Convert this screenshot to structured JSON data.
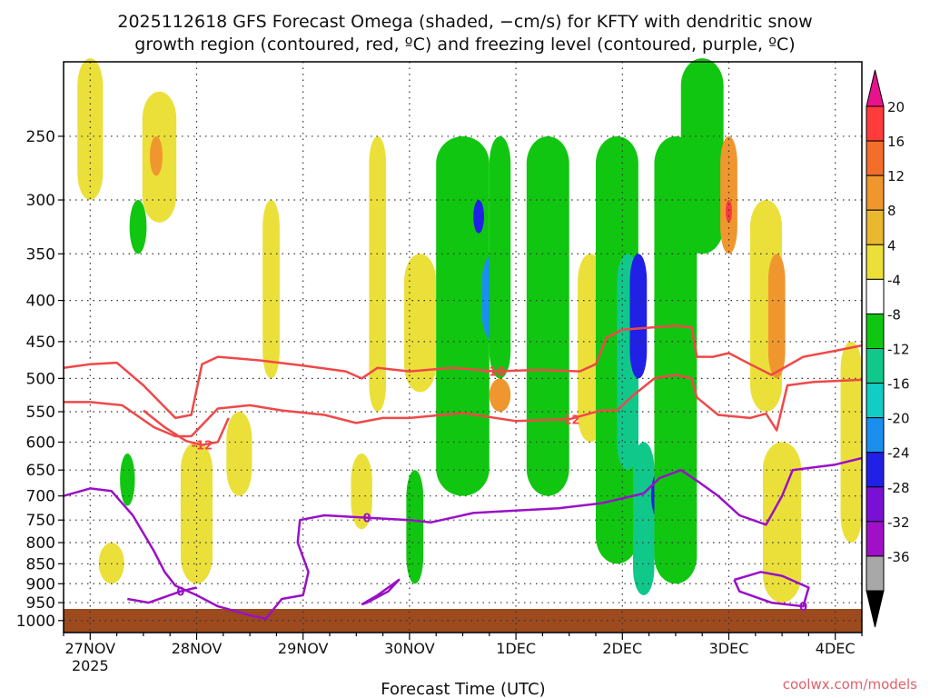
{
  "chart_data": {
    "type": "heatmap",
    "title_line1": "2025112618 GFS Forecast Omega (shaded, −cm/s) for KFTY with dendritic snow",
    "title_line2": "growth region (contoured, red, ºC) and freezing level (contoured, purple, ºC)",
    "xlabel": "Forecast Time (UTC)",
    "ylabel": "",
    "credit": "coolwx.com/models",
    "x_range_days": [
      -0.25,
      7.25
    ],
    "x_ticks": [
      {
        "day": 0,
        "label": "27NOV",
        "sublabel": "2025"
      },
      {
        "day": 1,
        "label": "28NOV"
      },
      {
        "day": 2,
        "label": "29NOV"
      },
      {
        "day": 3,
        "label": "30NOV"
      },
      {
        "day": 4,
        "label": "1DEC"
      },
      {
        "day": 5,
        "label": "2DEC"
      },
      {
        "day": 6,
        "label": "3DEC"
      },
      {
        "day": 7,
        "label": "4DEC"
      }
    ],
    "y_ticks_hpa": [
      250,
      300,
      350,
      400,
      450,
      500,
      550,
      600,
      650,
      700,
      750,
      800,
      850,
      900,
      950,
      1000
    ],
    "colorbar": {
      "labels": [
        "20",
        "16",
        "12",
        "8",
        "4",
        "-4",
        "-8",
        "-12",
        "-16",
        "-20",
        "-24",
        "-28",
        "-32",
        "-36"
      ],
      "colors": [
        "#e8128c",
        "#ff3b3b",
        "#f36e2b",
        "#f0962e",
        "#e9b830",
        "#ebe03a",
        "#ffffff",
        "#11c611",
        "#10c88a",
        "#11cdc6",
        "#1a8ff0",
        "#2020e6",
        "#7a10d6",
        "#a010c8",
        "#a8a8a8",
        "#000000"
      ]
    },
    "dendritic_contours": [
      {
        "label": "-18",
        "points": [
          [
            -0.25,
            485
          ],
          [
            0,
            480
          ],
          [
            0.25,
            478
          ],
          [
            0.5,
            510
          ],
          [
            0.8,
            560
          ],
          [
            0.95,
            555
          ],
          [
            1.05,
            480
          ],
          [
            1.2,
            470
          ],
          [
            1.6,
            475
          ],
          [
            2.0,
            482
          ],
          [
            2.4,
            490
          ],
          [
            2.55,
            500
          ],
          [
            2.7,
            485
          ],
          [
            3.0,
            490
          ],
          [
            3.4,
            485
          ],
          [
            3.8,
            490
          ],
          [
            4.2,
            488
          ],
          [
            4.6,
            490
          ],
          [
            4.75,
            480
          ],
          [
            4.85,
            445
          ],
          [
            5.0,
            435
          ],
          [
            5.5,
            430
          ],
          [
            5.65,
            432
          ],
          [
            5.7,
            470
          ],
          [
            5.85,
            470
          ],
          [
            6.0,
            465
          ],
          [
            6.2,
            480
          ],
          [
            6.4,
            495
          ],
          [
            6.7,
            470
          ],
          [
            7.0,
            462
          ],
          [
            7.25,
            455
          ]
        ]
      },
      {
        "label": "-12",
        "points": [
          [
            -0.25,
            535
          ],
          [
            0,
            535
          ],
          [
            0.3,
            540
          ],
          [
            0.6,
            575
          ],
          [
            0.8,
            590
          ],
          [
            0.95,
            590
          ],
          [
            1.2,
            545
          ],
          [
            1.5,
            540
          ],
          [
            1.8,
            548
          ],
          [
            2.2,
            555
          ],
          [
            2.5,
            568
          ],
          [
            2.75,
            560
          ],
          [
            3.0,
            560
          ],
          [
            3.5,
            552
          ],
          [
            4.0,
            565
          ],
          [
            4.5,
            562
          ],
          [
            4.8,
            548
          ],
          [
            4.95,
            548
          ],
          [
            5.1,
            525
          ],
          [
            5.3,
            500
          ],
          [
            5.5,
            495
          ],
          [
            5.65,
            500
          ],
          [
            5.7,
            528
          ],
          [
            5.9,
            555
          ],
          [
            6.2,
            560
          ],
          [
            6.35,
            553
          ],
          [
            6.45,
            580
          ],
          [
            6.55,
            510
          ],
          [
            6.8,
            505
          ],
          [
            7.25,
            502
          ]
        ]
      },
      {
        "label": "-12",
        "points": [
          [
            0.5,
            548
          ],
          [
            0.7,
            575
          ],
          [
            0.9,
            598
          ],
          [
            1.05,
            605
          ],
          [
            1.2,
            600
          ],
          [
            1.3,
            560
          ]
        ]
      }
    ],
    "freezing_contours": [
      {
        "label": "0",
        "points": [
          [
            -0.25,
            700
          ],
          [
            0,
            685
          ],
          [
            0.2,
            690
          ],
          [
            0.4,
            740
          ],
          [
            0.6,
            820
          ],
          [
            0.7,
            870
          ],
          [
            0.8,
            905
          ],
          [
            1.0,
            930
          ],
          [
            1.2,
            960
          ],
          [
            1.5,
            985
          ],
          [
            1.65,
            995
          ],
          [
            1.8,
            940
          ],
          [
            2.0,
            930
          ],
          [
            2.05,
            870
          ],
          [
            1.95,
            800
          ],
          [
            1.97,
            750
          ],
          [
            2.2,
            740
          ],
          [
            2.6,
            745
          ],
          [
            3.0,
            750
          ],
          [
            3.2,
            755
          ],
          [
            3.6,
            735
          ],
          [
            4.0,
            730
          ],
          [
            4.4,
            725
          ],
          [
            4.8,
            715
          ],
          [
            5.2,
            695
          ],
          [
            5.35,
            665
          ],
          [
            5.55,
            650
          ],
          [
            5.7,
            670
          ],
          [
            5.9,
            700
          ],
          [
            6.1,
            740
          ],
          [
            6.35,
            760
          ],
          [
            6.5,
            700
          ],
          [
            6.6,
            650
          ],
          [
            7.0,
            640
          ],
          [
            7.25,
            628
          ]
        ]
      },
      {
        "label": "0",
        "points": [
          [
            0.35,
            940
          ],
          [
            0.55,
            950
          ],
          [
            0.85,
            920
          ],
          [
            1.0,
            910
          ]
        ]
      },
      {
        "label": "",
        "points": [
          [
            2.55,
            955
          ],
          [
            2.7,
            930
          ],
          [
            2.9,
            890
          ],
          [
            2.8,
            920
          ],
          [
            2.6,
            950
          ],
          [
            2.55,
            955
          ]
        ]
      },
      {
        "label": "0",
        "points": [
          [
            6.05,
            890
          ],
          [
            6.3,
            870
          ],
          [
            6.5,
            880
          ],
          [
            6.75,
            910
          ],
          [
            6.7,
            960
          ],
          [
            6.4,
            950
          ],
          [
            6.1,
            920
          ],
          [
            6.05,
            890
          ]
        ]
      }
    ]
  }
}
